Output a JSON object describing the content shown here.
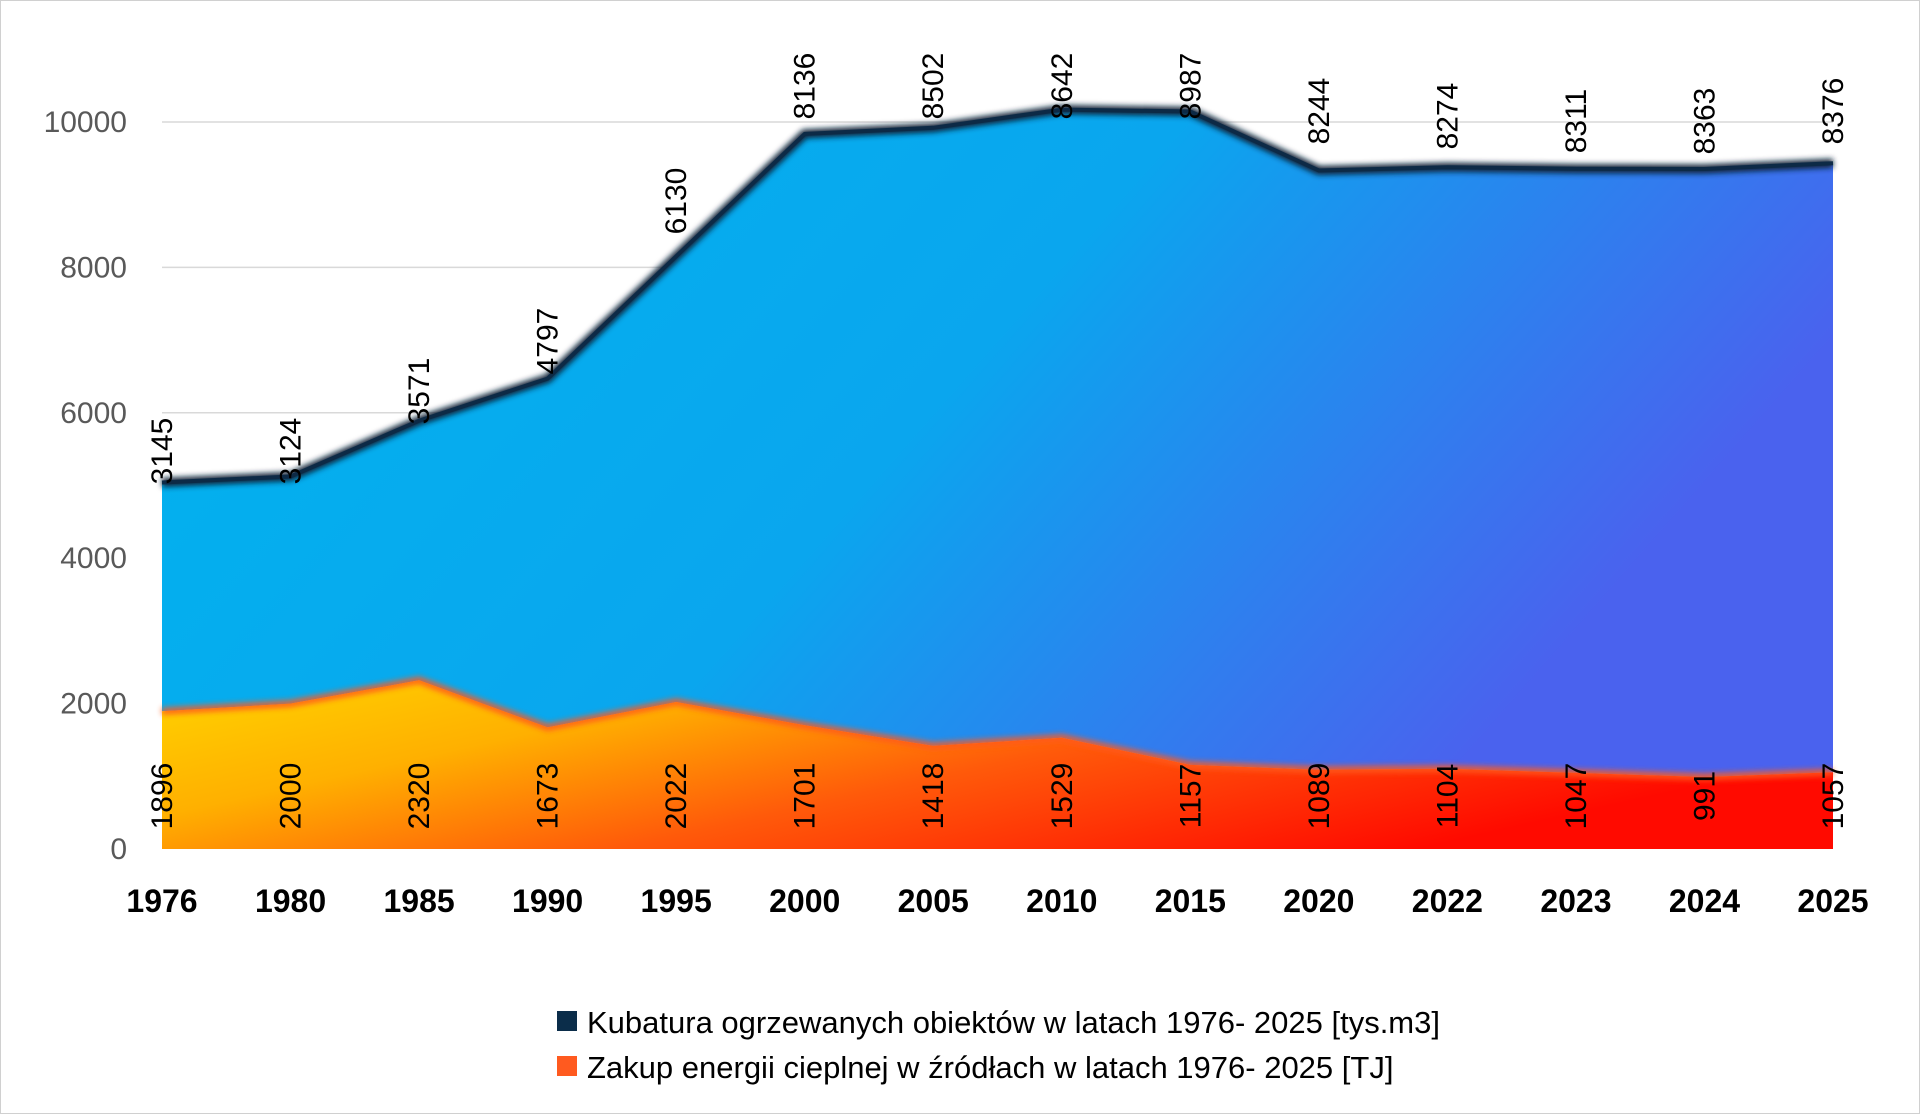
{
  "chart_data": {
    "type": "area",
    "stacked": true,
    "categories": [
      "1976",
      "1980",
      "1985",
      "1990",
      "1995",
      "2000",
      "2005",
      "2010",
      "2015",
      "2020",
      "2022",
      "2023",
      "2024",
      "2025"
    ],
    "series": [
      {
        "name": "Kubatura ogrzewanych obiektów w latach 1976- 2025 [tys.m3]",
        "values": [
          3145,
          3124,
          3571,
          4797,
          6130,
          8136,
          8502,
          8642,
          8987,
          8244,
          8274,
          8311,
          8363,
          8376
        ],
        "color": "#0b2d4a"
      },
      {
        "name": "Zakup energii cieplnej w źródłach w latach 1976- 2025 [TJ]",
        "values": [
          1896,
          2000,
          2320,
          1673,
          2022,
          1701,
          1418,
          1529,
          1157,
          1089,
          1104,
          1047,
          991,
          1057
        ],
        "color": "#ff5a1f"
      }
    ],
    "y_ticks": [
      "0",
      "2000",
      "4000",
      "6000",
      "8000",
      "10000"
    ],
    "ylim": [
      0,
      10000
    ],
    "grid": true,
    "legend_position": "bottom",
    "title": "",
    "xlabel": "",
    "ylabel": ""
  }
}
